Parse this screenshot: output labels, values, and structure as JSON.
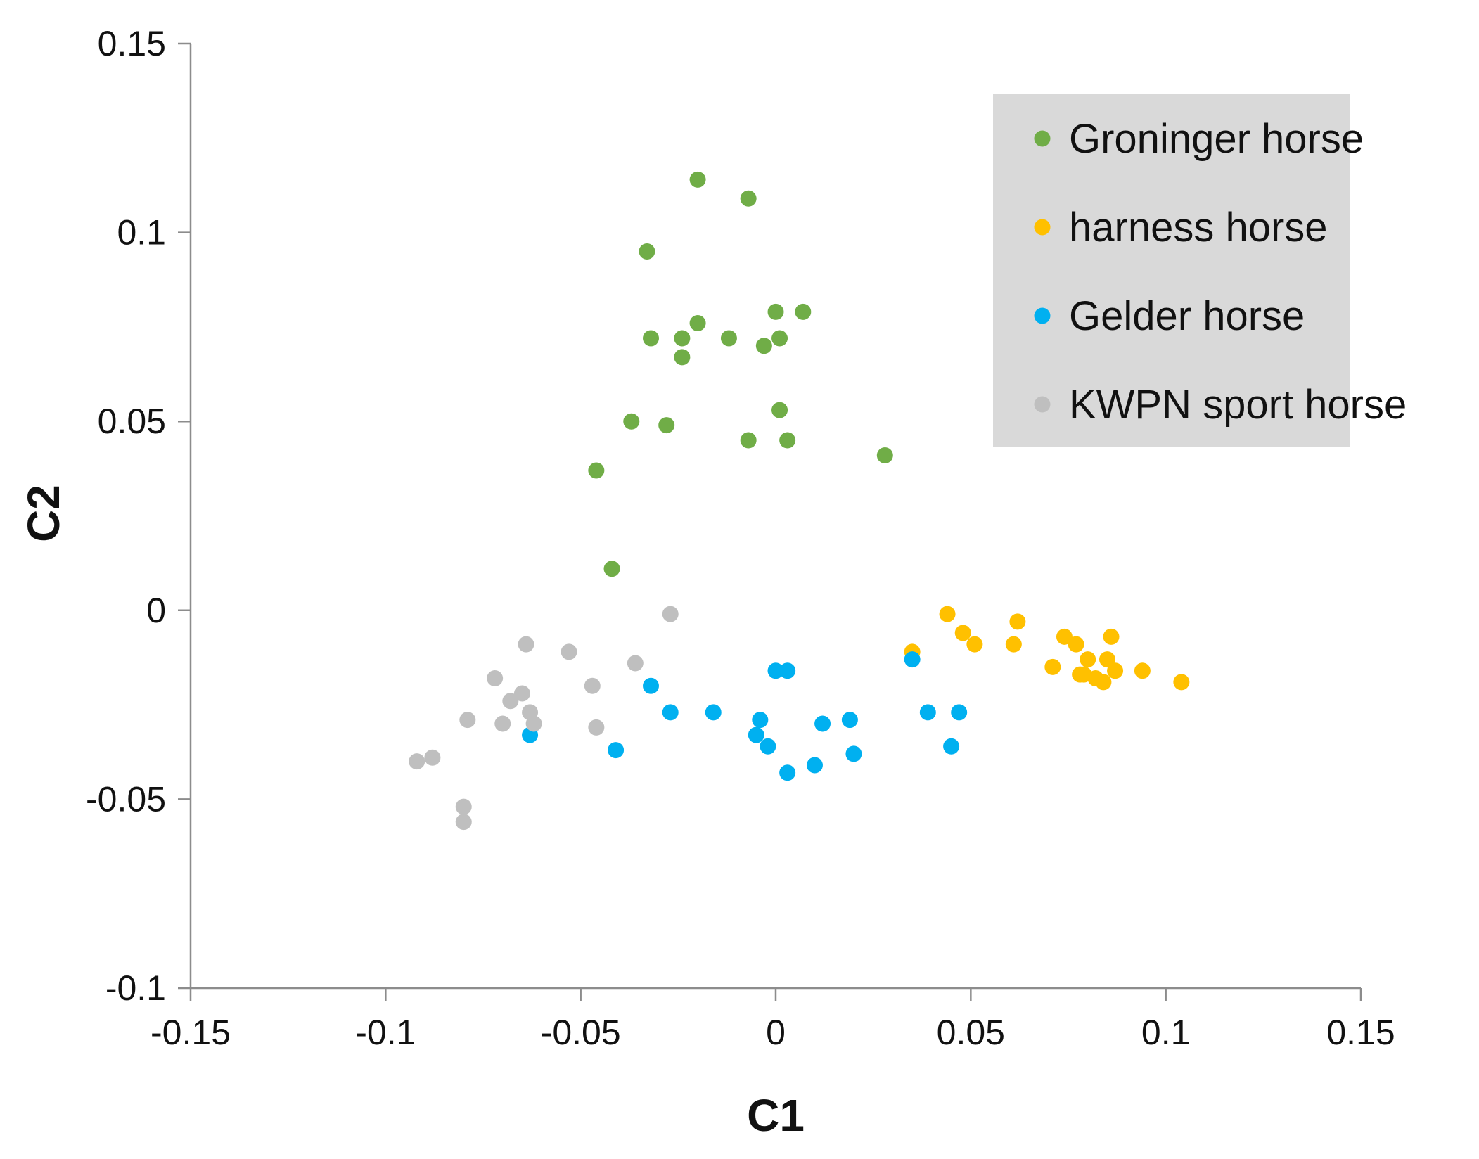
{
  "chart_data": {
    "type": "scatter",
    "title": "",
    "xlabel": "C1",
    "ylabel": "C2",
    "xlim": [
      -0.15,
      0.15
    ],
    "ylim": [
      -0.1,
      0.15
    ],
    "x_ticks": [
      -0.15,
      -0.1,
      -0.05,
      0,
      0.05,
      0.1,
      0.15
    ],
    "y_ticks": [
      -0.1,
      -0.05,
      0,
      0.05,
      0.1,
      0.15
    ],
    "x_tick_labels": [
      "-0.15",
      "-0.1",
      "-0.05",
      "0",
      "0.05",
      "0.1",
      "0.15"
    ],
    "y_tick_labels": [
      "-0.1",
      "-0.05",
      "0",
      "0.05",
      "0.1",
      "0.15"
    ],
    "grid": false,
    "legend_position": "top-right",
    "legend_background": "#d9d9d9",
    "series": [
      {
        "name": "Groninger horse",
        "color": "#70ad47",
        "points": [
          [
            -0.02,
            0.114
          ],
          [
            -0.007,
            0.109
          ],
          [
            -0.033,
            0.095
          ],
          [
            -0.032,
            0.072
          ],
          [
            -0.024,
            0.072
          ],
          [
            -0.02,
            0.076
          ],
          [
            -0.012,
            0.072
          ],
          [
            0.0,
            0.079
          ],
          [
            0.007,
            0.079
          ],
          [
            0.001,
            0.072
          ],
          [
            -0.003,
            0.07
          ],
          [
            -0.024,
            0.067
          ],
          [
            -0.037,
            0.05
          ],
          [
            -0.028,
            0.049
          ],
          [
            0.001,
            0.053
          ],
          [
            -0.007,
            0.045
          ],
          [
            0.003,
            0.045
          ],
          [
            0.028,
            0.041
          ],
          [
            -0.046,
            0.037
          ],
          [
            -0.042,
            0.011
          ]
        ]
      },
      {
        "name": "harness horse",
        "color": "#ffc000",
        "points": [
          [
            0.035,
            -0.011
          ],
          [
            0.044,
            -0.001
          ],
          [
            0.048,
            -0.006
          ],
          [
            0.051,
            -0.009
          ],
          [
            0.061,
            -0.009
          ],
          [
            0.062,
            -0.003
          ],
          [
            0.071,
            -0.015
          ],
          [
            0.074,
            -0.007
          ],
          [
            0.077,
            -0.009
          ],
          [
            0.078,
            -0.017
          ],
          [
            0.079,
            -0.017
          ],
          [
            0.08,
            -0.013
          ],
          [
            0.082,
            -0.018
          ],
          [
            0.084,
            -0.019
          ],
          [
            0.085,
            -0.013
          ],
          [
            0.086,
            -0.007
          ],
          [
            0.087,
            -0.016
          ],
          [
            0.094,
            -0.016
          ],
          [
            0.104,
            -0.019
          ]
        ]
      },
      {
        "name": "Gelder horse",
        "color": "#00b0f0",
        "points": [
          [
            -0.063,
            -0.033
          ],
          [
            -0.041,
            -0.037
          ],
          [
            -0.032,
            -0.02
          ],
          [
            -0.027,
            -0.027
          ],
          [
            -0.016,
            -0.027
          ],
          [
            -0.005,
            -0.033
          ],
          [
            -0.004,
            -0.029
          ],
          [
            -0.002,
            -0.036
          ],
          [
            0.0,
            -0.016
          ],
          [
            0.003,
            -0.016
          ],
          [
            0.003,
            -0.043
          ],
          [
            0.01,
            -0.041
          ],
          [
            0.012,
            -0.03
          ],
          [
            0.019,
            -0.029
          ],
          [
            0.02,
            -0.038
          ],
          [
            0.035,
            -0.013
          ],
          [
            0.039,
            -0.027
          ],
          [
            0.045,
            -0.036
          ],
          [
            0.047,
            -0.027
          ]
        ]
      },
      {
        "name": "KWPN sport horse",
        "color": "#bfbfbf",
        "points": [
          [
            -0.027,
            -0.001
          ],
          [
            -0.064,
            -0.009
          ],
          [
            -0.053,
            -0.011
          ],
          [
            -0.036,
            -0.014
          ],
          [
            -0.047,
            -0.02
          ],
          [
            -0.072,
            -0.018
          ],
          [
            -0.065,
            -0.022
          ],
          [
            -0.068,
            -0.024
          ],
          [
            -0.063,
            -0.027
          ],
          [
            -0.062,
            -0.03
          ],
          [
            -0.07,
            -0.03
          ],
          [
            -0.079,
            -0.029
          ],
          [
            -0.046,
            -0.031
          ],
          [
            -0.092,
            -0.04
          ],
          [
            -0.088,
            -0.039
          ],
          [
            -0.08,
            -0.052
          ],
          [
            -0.08,
            -0.056
          ]
        ]
      }
    ]
  }
}
